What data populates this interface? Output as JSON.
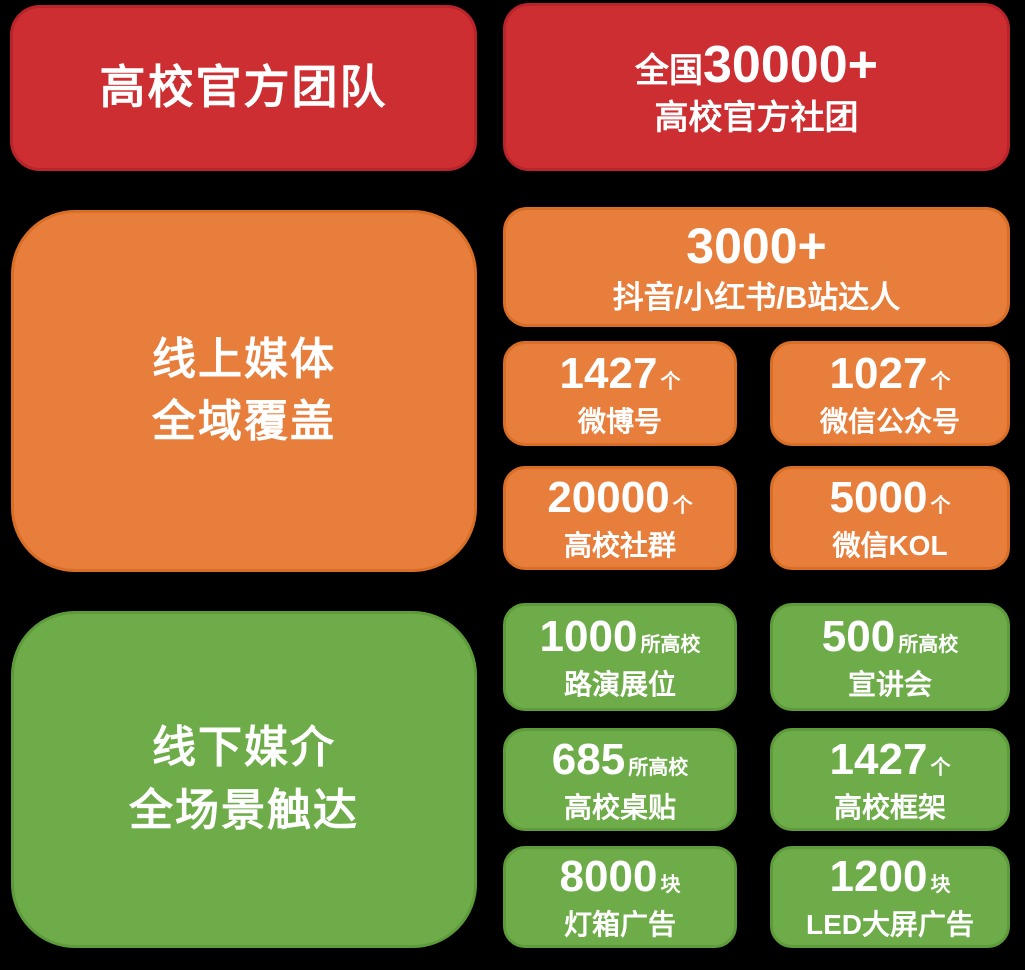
{
  "colors": {
    "background": "#000000",
    "red_fill": "#cd2e31",
    "red_border": "#b9242a",
    "orange_fill": "#e87e3c",
    "orange_border": "#d96e26",
    "green_fill": "#6eac49",
    "green_border": "#5e9b3a",
    "text": "#ffffff"
  },
  "sections": [
    {
      "id": "official-teams",
      "color": "red",
      "title_line1": "高校官方团队",
      "stats": [
        {
          "prefix": "全国",
          "value": "30000+",
          "label": "高校官方社团"
        }
      ]
    },
    {
      "id": "online-media",
      "color": "orange",
      "title_line1": "线上媒体",
      "title_line2": "全域覆盖",
      "stats": [
        {
          "value": "3000+",
          "label": "抖音/小红书/B站达人"
        },
        {
          "value": "1427",
          "unit": "个",
          "label": "微博号"
        },
        {
          "value": "1027",
          "unit": "个",
          "label": "微信公众号"
        },
        {
          "value": "20000",
          "unit": "个",
          "label": "高校社群"
        },
        {
          "value": "5000",
          "unit": "个",
          "label": "微信KOL"
        }
      ]
    },
    {
      "id": "offline-media",
      "color": "green",
      "title_line1": "线下媒介",
      "title_line2": "全场景触达",
      "stats": [
        {
          "value": "1000",
          "unit": "所高校",
          "label": "路演展位"
        },
        {
          "value": "500",
          "unit": "所高校",
          "label": "宣讲会"
        },
        {
          "value": "685",
          "unit": "所高校",
          "label": "高校桌贴"
        },
        {
          "value": "1427",
          "unit": "个",
          "label": "高校框架"
        },
        {
          "value": "8000",
          "unit": "块",
          "label": "灯箱广告"
        },
        {
          "value": "1200",
          "unit": "块",
          "label": "LED大屏广告"
        }
      ]
    }
  ]
}
